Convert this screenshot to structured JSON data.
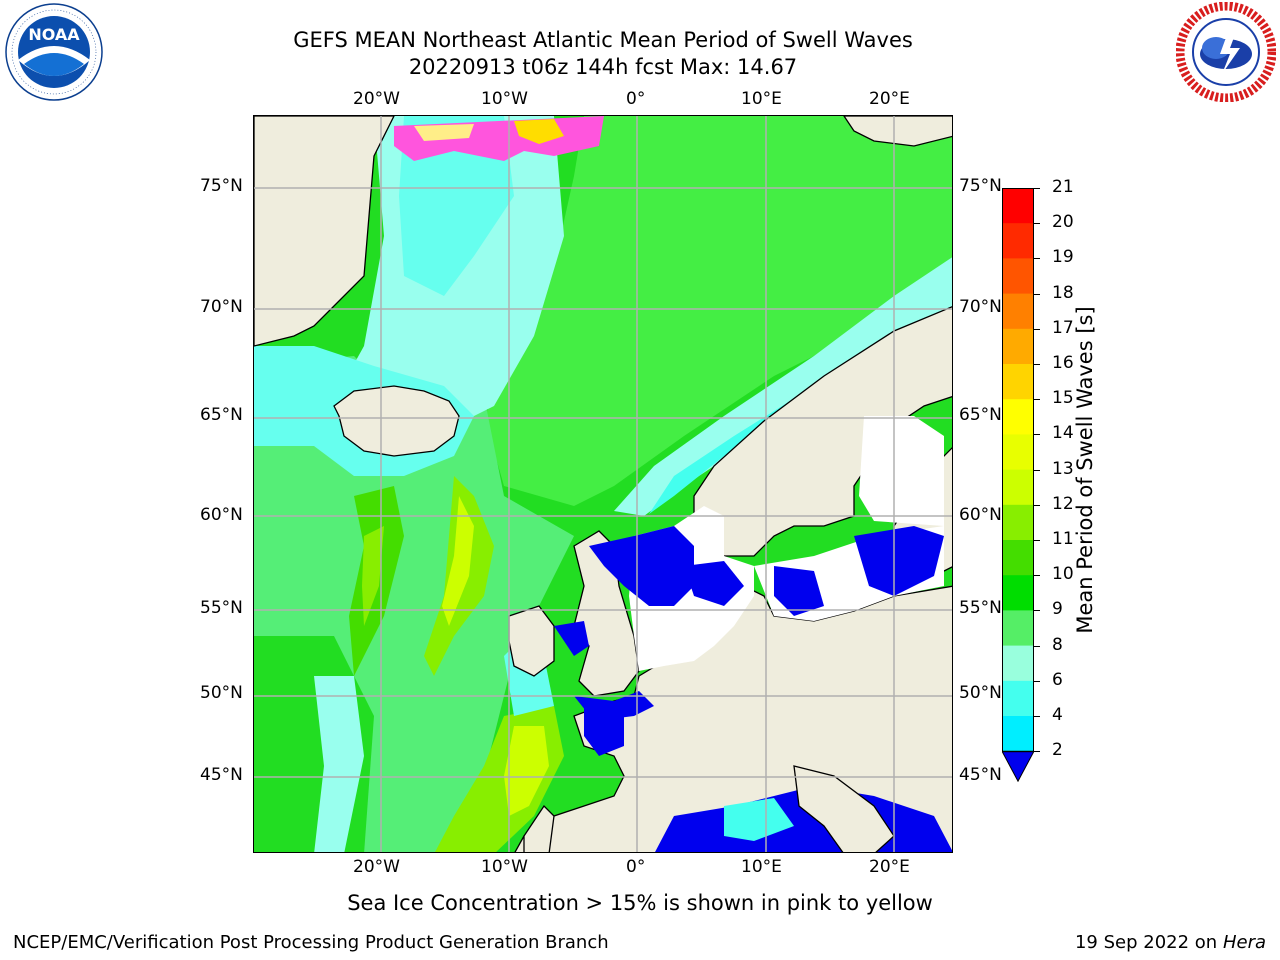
{
  "header": {
    "title_line1": "GEFS MEAN Northeast Atlantic Mean Period of Swell Waves",
    "title_line2": "20220913 t06z 144h fcst   Max: 14.67"
  },
  "logos": {
    "noaa_text": "NOAA",
    "noaa_ring_text": "NATIONAL OCEANIC AND ATMOSPHERIC ADMINISTRATION · U.S. DEPARTMENT OF COMMERCE",
    "nws_ring_text": "NATIONAL WEATHER SERVICE"
  },
  "map": {
    "lon_labels_top": [
      "20°W",
      "10°W",
      "0°",
      "10°E",
      "20°E"
    ],
    "lon_labels_bottom": [
      "20°W",
      "10°W",
      "0°",
      "10°E",
      "20°E"
    ],
    "lat_labels_left": [
      "75°N",
      "70°N",
      "65°N",
      "60°N",
      "55°N",
      "50°N",
      "45°N"
    ],
    "lat_labels_right": [
      "75°N",
      "70°N",
      "65°N",
      "60°N",
      "55°N",
      "50°N",
      "45°N"
    ],
    "colors": {
      "land": "#efeddd",
      "gridline": "#b0b0b0",
      "sea_ice": "#ff55dd",
      "ice_edge": "#ffee00"
    }
  },
  "colorbar": {
    "label": "Mean Period of Swell Waves [s]",
    "ticks": [
      "21",
      "20",
      "19",
      "18",
      "17",
      "16",
      "15",
      "14",
      "13",
      "12",
      "11",
      "10",
      "9",
      "8",
      "6",
      "4",
      "2"
    ],
    "colors_top_to_bottom": [
      "#ff0000",
      "#ff2a00",
      "#ff5500",
      "#ff8000",
      "#ffaa00",
      "#ffd400",
      "#ffff00",
      "#e8ff00",
      "#ccff00",
      "#88ee00",
      "#44dd00",
      "#00dd00",
      "#55ee66",
      "#99ffdd",
      "#44ffee",
      "#00eeff",
      "#00aaff",
      "#0000ee"
    ],
    "extend_color": "#0000ee",
    "units": "s"
  },
  "note": "Sea Ice Concentration > 15% is shown in pink to yellow",
  "footer": {
    "left": "NCEP/EMC/Verification Post Processing Product Generation Branch",
    "right_date": "19 Sep 2022 on",
    "right_host": "Hera"
  }
}
